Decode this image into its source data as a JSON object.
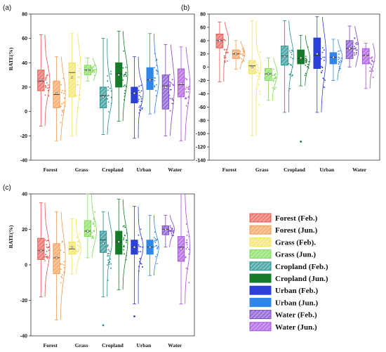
{
  "groups": [
    {
      "key": "forest_feb",
      "label": "Forest (Feb.)",
      "color": "#e8564e",
      "hatch": "right"
    },
    {
      "key": "forest_jun",
      "label": "Forest (Jun.)",
      "color": "#f39a52",
      "hatch": "right"
    },
    {
      "key": "grass_feb",
      "label": "Grass (Feb).",
      "color": "#f2e35a",
      "hatch": "right"
    },
    {
      "key": "grass_jun",
      "label": "Grass (Jun.)",
      "color": "#7fdc55",
      "hatch": "right"
    },
    {
      "key": "crop_feb",
      "label": "Cropland (Feb.)",
      "color": "#1f8f8f",
      "hatch": "right"
    },
    {
      "key": "crop_jun",
      "label": "Cropland (Jun.)",
      "color": "#157a2a",
      "hatch": "none"
    },
    {
      "key": "urban_feb",
      "label": "Urban (Feb.)",
      "color": "#2c3fd6",
      "hatch": "none"
    },
    {
      "key": "urban_jun",
      "label": "Urban (Jun.)",
      "color": "#2f86e8",
      "hatch": "none"
    },
    {
      "key": "water_feb",
      "label": "Water (Feb.)",
      "color": "#7a44cc",
      "hatch": "right"
    },
    {
      "key": "water_jun",
      "label": "Water (Jun.)",
      "color": "#a64ee0",
      "hatch": "right"
    }
  ],
  "chart_data": [
    {
      "type": "box",
      "panel_label": "(a)",
      "ylabel": "RATE(%)",
      "ylim": [
        -40,
        80
      ],
      "yticks": [
        -40,
        -20,
        0,
        20,
        40,
        60,
        80
      ],
      "categories": [
        "Forest",
        "Grass",
        "Cropland",
        "Urban",
        "Water"
      ],
      "boxes": [
        {
          "group": "forest_feb",
          "q1": 17,
          "median": 25,
          "q3": 34,
          "whisker_low": -12,
          "whisker_high": 63,
          "mean": 26
        },
        {
          "group": "forest_jun",
          "q1": 3,
          "median": 14,
          "q3": 25,
          "whisker_low": -24,
          "whisker_high": 45,
          "mean": 15
        },
        {
          "group": "grass_feb",
          "q1": 12,
          "median": 32,
          "q3": 40,
          "whisker_low": -20,
          "whisker_high": 64,
          "mean": 28
        },
        {
          "group": "grass_jun",
          "q1": 30,
          "median": 34,
          "q3": 38,
          "whisker_low": 25,
          "whisker_high": 44,
          "mean": 34
        },
        {
          "group": "crop_feb",
          "q1": 3,
          "median": 13,
          "q3": 20,
          "whisker_low": -19,
          "whisker_high": 60,
          "mean": 12
        },
        {
          "group": "crop_jun",
          "q1": 20,
          "median": 31,
          "q3": 40,
          "whisker_low": -8,
          "whisker_high": 66,
          "mean": 30
        },
        {
          "group": "urban_feb",
          "q1": 7,
          "median": 15,
          "q3": 20,
          "whisker_low": -22,
          "whisker_high": 45,
          "mean": 15
        },
        {
          "group": "urban_jun",
          "q1": 18,
          "median": 26,
          "q3": 36,
          "whisker_low": -2,
          "whisker_high": 64,
          "mean": 26
        },
        {
          "group": "water_feb",
          "q1": 2,
          "median": 21,
          "q3": 30,
          "whisker_low": -20,
          "whisker_high": 55,
          "mean": 20
        },
        {
          "group": "water_jun",
          "q1": 12,
          "median": 22,
          "q3": 35,
          "whisker_low": -24,
          "whisker_high": 53,
          "mean": 23
        }
      ],
      "outliers": []
    },
    {
      "type": "box",
      "panel_label": "(b)",
      "ylabel": "",
      "ylim": [
        -140,
        80
      ],
      "yticks": [
        -140,
        -120,
        -100,
        -80,
        -60,
        -40,
        -20,
        0,
        20,
        40,
        60,
        80
      ],
      "categories": [
        "Forest",
        "Grass",
        "Cropland",
        "Urban",
        "Water"
      ],
      "boxes": [
        {
          "group": "forest_feb",
          "q1": 29,
          "median": 40,
          "q3": 50,
          "whisker_low": -22,
          "whisker_high": 68,
          "mean": 40
        },
        {
          "group": "forest_jun",
          "q1": 13,
          "median": 20,
          "q3": 26,
          "whisker_low": -3,
          "whisker_high": 40,
          "mean": 20
        },
        {
          "group": "grass_feb",
          "q1": -10,
          "median": 2,
          "q3": 10,
          "whisker_low": -103,
          "whisker_high": 70,
          "mean": 0
        },
        {
          "group": "grass_jun",
          "q1": -20,
          "median": -10,
          "q3": -2,
          "whisker_low": -50,
          "whisker_high": 14,
          "mean": -10
        },
        {
          "group": "crop_feb",
          "q1": 3,
          "median": 17,
          "q3": 32,
          "whisker_low": -68,
          "whisker_high": 70,
          "mean": 16
        },
        {
          "group": "crop_jun",
          "q1": 5,
          "median": 13,
          "q3": 26,
          "whisker_low": -28,
          "whisker_high": 48,
          "mean": 14
        },
        {
          "group": "urban_feb",
          "q1": -2,
          "median": 18,
          "q3": 44,
          "whisker_low": -68,
          "whisker_high": 76,
          "mean": 20
        },
        {
          "group": "urban_jun",
          "q1": 5,
          "median": 15,
          "q3": 22,
          "whisker_low": -20,
          "whisker_high": 42,
          "mean": 15
        },
        {
          "group": "water_feb",
          "q1": 13,
          "median": 28,
          "q3": 40,
          "whisker_low": 0,
          "whisker_high": 62,
          "mean": 28
        },
        {
          "group": "water_jun",
          "q1": 5,
          "median": 18,
          "q3": 28,
          "whisker_low": -32,
          "whisker_high": 36,
          "mean": 17
        }
      ],
      "outliers": [
        {
          "group": "crop_jun",
          "y": -112
        }
      ]
    },
    {
      "type": "box",
      "panel_label": "(c)",
      "ylabel": "RATE(%)",
      "ylim": [
        -40,
        40
      ],
      "yticks": [
        -40,
        -20,
        0,
        20,
        40
      ],
      "categories": [
        "Forest",
        "Grass",
        "Cropland",
        "Urban",
        "Water"
      ],
      "boxes": [
        {
          "group": "forest_feb",
          "q1": 3,
          "median": 8,
          "q3": 15,
          "whisker_low": -18,
          "whisker_high": 35,
          "mean": 8
        },
        {
          "group": "forest_jun",
          "q1": -5,
          "median": 4,
          "q3": 12,
          "whisker_low": -31,
          "whisker_high": 30,
          "mean": 4
        },
        {
          "group": "grass_feb",
          "q1": 6,
          "median": 9,
          "q3": 13,
          "whisker_low": -5,
          "whisker_high": 26,
          "mean": 10
        },
        {
          "group": "grass_jun",
          "q1": 16,
          "median": 19,
          "q3": 25,
          "whisker_low": 4,
          "whisker_high": 40,
          "mean": 19
        },
        {
          "group": "crop_feb",
          "q1": 7,
          "median": 14,
          "q3": 19,
          "whisker_low": -18,
          "whisker_high": 30,
          "mean": 12
        },
        {
          "group": "crop_jun",
          "q1": 6,
          "median": 13,
          "q3": 19,
          "whisker_low": -14,
          "whisker_high": 37,
          "mean": 13
        },
        {
          "group": "urban_feb",
          "q1": 6,
          "median": 10,
          "q3": 14,
          "whisker_low": -22,
          "whisker_high": 33,
          "mean": 10
        },
        {
          "group": "urban_jun",
          "q1": 6,
          "median": 10,
          "q3": 14,
          "whisker_low": -6,
          "whisker_high": 28,
          "mean": 10
        },
        {
          "group": "water_feb",
          "q1": 17,
          "median": 20,
          "q3": 22,
          "whisker_low": 10,
          "whisker_high": 28,
          "mean": 20
        },
        {
          "group": "water_jun",
          "q1": 2,
          "median": 10,
          "q3": 16,
          "whisker_low": -22,
          "whisker_high": 40,
          "mean": 9
        }
      ],
      "outliers": [
        {
          "group": "crop_feb",
          "y": -34
        },
        {
          "group": "urban_feb",
          "y": -29
        }
      ]
    }
  ]
}
